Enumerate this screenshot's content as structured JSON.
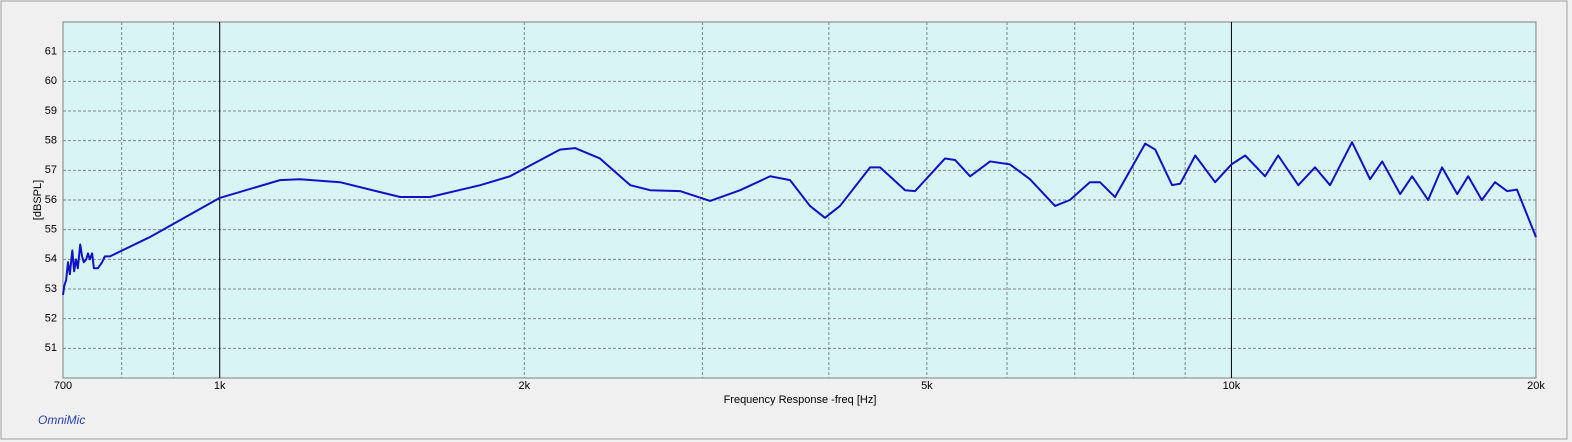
{
  "chart_data": {
    "type": "line",
    "xlabel": "Frequency Response -freq [Hz]",
    "ylabel": "[dBSPL]",
    "source": "OmniMic",
    "log_x": true,
    "grid": true,
    "xlim": [
      700,
      20000
    ],
    "ylim": [
      50,
      62
    ],
    "xticks": [
      700,
      {
        "value": 1000,
        "label": "1k"
      },
      {
        "value": 2000,
        "label": "2k"
      },
      {
        "value": 5000,
        "label": "5k"
      },
      {
        "value": 10000,
        "label": "10k"
      },
      {
        "value": 20000,
        "label": "20k"
      }
    ],
    "xgrid": [
      800,
      900,
      1000,
      2000,
      3000,
      4000,
      5000,
      6000,
      7000,
      8000,
      9000,
      10000
    ],
    "yticks": [
      51,
      52,
      53,
      54,
      55,
      56,
      57,
      58,
      59,
      60,
      61
    ],
    "x": [
      700,
      702,
      705,
      708,
      711,
      715,
      718,
      721,
      724,
      728,
      731,
      734,
      738,
      741,
      744,
      748,
      751,
      758,
      765,
      770,
      779,
      853,
      1000,
      1147,
      1200,
      1315,
      1508,
      1614,
      1809,
      1936,
      2169,
      2245,
      2376,
      2545,
      2663,
      2851,
      3053,
      3269,
      3500,
      3662,
      3832,
      3965,
      4103,
      4394,
      4495,
      4758,
      4868,
      5211,
      5331,
      5517,
      5774,
      6041,
      6322,
      6693,
      6924,
      7245,
      7414,
      7672,
      7941,
      8218,
      8408,
      8737,
      8900,
      9209,
      9635,
      10000,
      10318,
      10796,
      11122,
      11644,
      12096,
      12516,
      13158,
      13709,
      14094,
      14681,
      15086,
      15645,
      16151,
      16718,
      17140,
      17680,
      18218,
      18725,
      19152,
      20000
    ],
    "series": [
      {
        "name": "Frequency Response",
        "color": "#1212c4",
        "values": [
          52.8,
          53.1,
          53.3,
          53.9,
          53.5,
          54.3,
          53.6,
          54.0,
          53.7,
          54.5,
          54.1,
          53.9,
          54.0,
          54.2,
          54.0,
          54.2,
          53.7,
          53.7,
          53.9,
          54.1,
          54.1,
          54.75,
          56.07,
          56.67,
          56.7,
          56.6,
          56.1,
          56.1,
          56.5,
          56.8,
          57.7,
          57.75,
          57.4,
          56.5,
          56.33,
          56.3,
          55.97,
          56.33,
          56.8,
          56.67,
          55.8,
          55.4,
          55.8,
          57.1,
          57.1,
          56.33,
          56.3,
          57.4,
          57.35,
          56.8,
          57.3,
          57.2,
          56.7,
          55.8,
          56.0,
          56.6,
          56.6,
          56.1,
          57.0,
          57.9,
          57.7,
          56.5,
          56.55,
          57.5,
          56.6,
          57.2,
          57.5,
          56.8,
          57.5,
          56.5,
          57.1,
          56.5,
          57.95,
          56.7,
          57.3,
          56.2,
          56.8,
          56.0,
          57.1,
          56.2,
          56.8,
          56.0,
          56.6,
          56.3,
          56.35,
          54.75
        ]
      }
    ]
  }
}
